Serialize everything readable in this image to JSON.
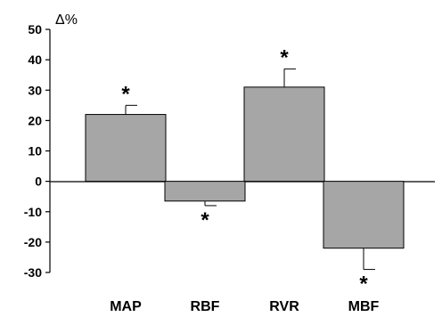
{
  "chart_data": {
    "type": "bar",
    "ylabel": "Δ%",
    "categories": [
      "MAP",
      "RBF",
      "RVR",
      "MBF"
    ],
    "values": [
      22,
      -6.5,
      31,
      -22
    ],
    "errors": [
      3,
      1.5,
      6,
      7
    ],
    "significance": [
      "*",
      "*",
      "*",
      "*"
    ],
    "ylim": [
      -30,
      50
    ],
    "yticks": [
      -30,
      -20,
      -10,
      0,
      10,
      20,
      30,
      40,
      50
    ],
    "grid": false,
    "bar_color": "#a6a6a6",
    "edge_color": "#000000"
  }
}
